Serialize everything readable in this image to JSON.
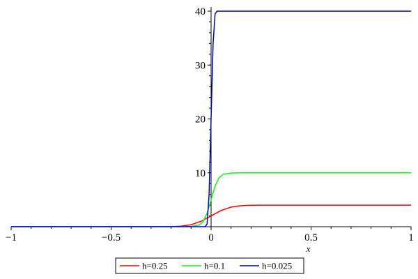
{
  "chart_data": {
    "type": "line",
    "xlabel": "x",
    "ylabel": "",
    "xlim": [
      -1,
      1
    ],
    "ylim": [
      0,
      40
    ],
    "x_ticks": [
      -1,
      -0.5,
      0,
      0.5,
      1
    ],
    "x_tick_labels": [
      "−1",
      "−0.5",
      "0",
      "0.5",
      "1"
    ],
    "y_ticks": [
      10,
      20,
      30,
      40
    ],
    "y_tick_labels": [
      "10",
      "20",
      "30",
      "40"
    ],
    "legend_position": "bottom",
    "series": [
      {
        "name": "h=0.25",
        "color": "#ff0000",
        "points": [
          [
            -1,
            0
          ],
          [
            -0.3,
            0
          ],
          [
            -0.2,
            0.02
          ],
          [
            -0.15,
            0.1
          ],
          [
            -0.1,
            0.36
          ],
          [
            -0.05,
            1.0
          ],
          [
            0,
            2.0
          ],
          [
            0.05,
            3.0
          ],
          [
            0.1,
            3.64
          ],
          [
            0.15,
            3.9
          ],
          [
            0.2,
            3.98
          ],
          [
            0.3,
            4.0
          ],
          [
            1,
            4.0
          ]
        ]
      },
      {
        "name": "h=0.1",
        "color": "#00ff00",
        "points": [
          [
            -1,
            0
          ],
          [
            -0.15,
            0
          ],
          [
            -0.1,
            0.05
          ],
          [
            -0.06,
            0.3
          ],
          [
            -0.04,
            0.9
          ],
          [
            -0.02,
            2.5
          ],
          [
            0,
            5.0
          ],
          [
            0.02,
            7.5
          ],
          [
            0.04,
            9.1
          ],
          [
            0.06,
            9.7
          ],
          [
            0.1,
            9.95
          ],
          [
            0.15,
            10.0
          ],
          [
            1,
            10.0
          ]
        ]
      },
      {
        "name": "h=0.025",
        "color": "#0000c8",
        "points": [
          [
            -1,
            0
          ],
          [
            -0.03,
            0
          ],
          [
            -0.02,
            0.5
          ],
          [
            -0.01,
            6
          ],
          [
            -0.005,
            13
          ],
          [
            0,
            20
          ],
          [
            0.005,
            27
          ],
          [
            0.01,
            34
          ],
          [
            0.02,
            39.5
          ],
          [
            0.03,
            40
          ],
          [
            1,
            40
          ]
        ]
      }
    ]
  }
}
